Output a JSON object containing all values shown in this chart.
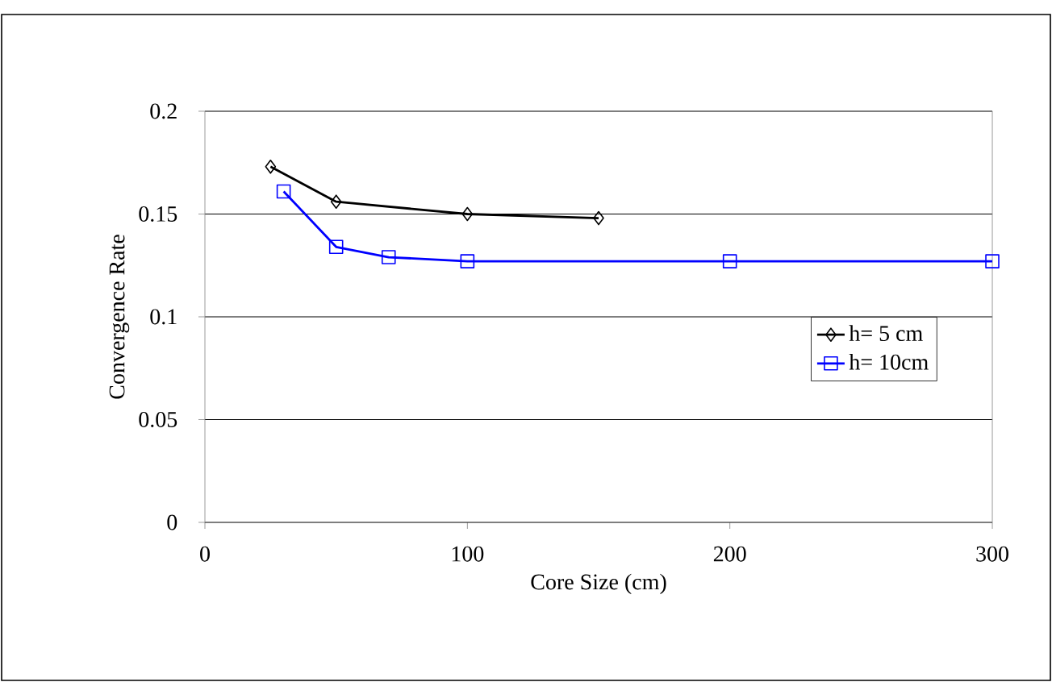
{
  "chart_data": {
    "type": "line",
    "xlabel": "Core Size (cm)",
    "ylabel": "Convergence Rate",
    "xlim": [
      0,
      300
    ],
    "xticks": [
      0,
      100,
      200,
      300
    ],
    "ylim": [
      0,
      0.2
    ],
    "yticks": [
      0,
      0.05,
      0.1,
      0.15,
      0.2
    ],
    "grid": "y",
    "legend": "right",
    "series": [
      {
        "name": "h=  5 cm",
        "color": "#000000",
        "marker": "diamond",
        "x": [
          25,
          50,
          100,
          150
        ],
        "values": [
          0.173,
          0.156,
          0.15,
          0.148
        ]
      },
      {
        "name": "h= 10cm",
        "color": "#0000ff",
        "marker": "square",
        "x": [
          30,
          50,
          70,
          100,
          200,
          300
        ],
        "values": [
          0.161,
          0.134,
          0.129,
          0.127,
          0.127,
          0.127
        ]
      }
    ]
  }
}
